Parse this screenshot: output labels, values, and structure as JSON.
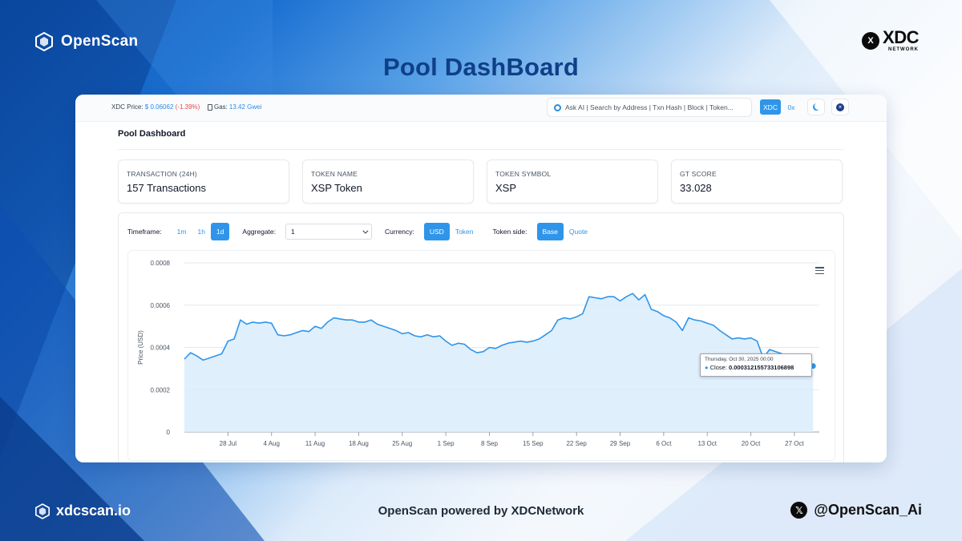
{
  "brand": {
    "name": "OpenScan",
    "partner_badge": "X",
    "partner_logo_text": "XDC",
    "partner_logo_sub": "NETWORK"
  },
  "headline": "Pool DashBoard",
  "topbar": {
    "price_label": "XDC Price:",
    "price_value": "$ 0.06062",
    "price_change": "(-1.39%)",
    "gas_label": "Gas:",
    "gas_value": "13.42 Gwei",
    "search_placeholder": "Ask AI | Search by Address | Txn Hash | Block | Token...",
    "network_xdc": "XDC",
    "network_0x": "0x"
  },
  "page": {
    "title": "Pool Dashboard",
    "cards": [
      {
        "label": "TRANSACTION (24H)",
        "value": "157 Transactions"
      },
      {
        "label": "TOKEN NAME",
        "value": "XSP Token"
      },
      {
        "label": "TOKEN SYMBOL",
        "value": "XSP"
      },
      {
        "label": "GT SCORE",
        "value": "33.028"
      }
    ]
  },
  "controls": {
    "timeframe_label": "Timeframe:",
    "timeframes": [
      "1m",
      "1h",
      "1d"
    ],
    "timeframe_active": "1d",
    "aggregate_label": "Aggregate:",
    "aggregate_value": "1",
    "currency_label": "Currency:",
    "currencies": [
      "USD",
      "Token"
    ],
    "currency_active": "USD",
    "token_side_label": "Token side:",
    "token_sides": [
      "Base",
      "Quote"
    ],
    "token_side_active": "Base"
  },
  "tooltip": {
    "date": "Thursday, Oct 30, 2025 00:00",
    "series_label": "Close",
    "value": "0.000312155733106898"
  },
  "chart_data": {
    "type": "area",
    "ylabel": "Price (USD)",
    "ylim": [
      0,
      0.0008
    ],
    "yticks": [
      0,
      0.0002,
      0.0004,
      0.0006,
      0.0008
    ],
    "ytick_labels": [
      "0",
      "0.0002",
      "0.0004",
      "0.0006",
      "0.0008"
    ],
    "xlim": [
      "2025-07-21",
      "2025-10-31"
    ],
    "xticks": [
      "2025-07-28",
      "2025-08-04",
      "2025-08-11",
      "2025-08-18",
      "2025-08-25",
      "2025-09-01",
      "2025-09-08",
      "2025-09-15",
      "2025-09-22",
      "2025-09-29",
      "2025-10-06",
      "2025-10-13",
      "2025-10-20",
      "2025-10-27"
    ],
    "xtick_labels": [
      "28 Jul",
      "4 Aug",
      "11 Aug",
      "18 Aug",
      "25 Aug",
      "1 Sep",
      "8 Sep",
      "15 Sep",
      "22 Sep",
      "29 Sep",
      "6 Oct",
      "13 Oct",
      "20 Oct",
      "27 Oct"
    ],
    "grid": true,
    "colors": {
      "line": "#2f95ea",
      "fill": "#dbecfb"
    },
    "series": [
      {
        "name": "Close",
        "x": [
          "2025-07-21",
          "2025-07-22",
          "2025-07-23",
          "2025-07-24",
          "2025-07-25",
          "2025-07-26",
          "2025-07-27",
          "2025-07-28",
          "2025-07-29",
          "2025-07-30",
          "2025-07-31",
          "2025-08-01",
          "2025-08-02",
          "2025-08-03",
          "2025-08-04",
          "2025-08-05",
          "2025-08-06",
          "2025-08-07",
          "2025-08-08",
          "2025-08-09",
          "2025-08-10",
          "2025-08-11",
          "2025-08-12",
          "2025-08-13",
          "2025-08-14",
          "2025-08-15",
          "2025-08-16",
          "2025-08-17",
          "2025-08-18",
          "2025-08-19",
          "2025-08-20",
          "2025-08-21",
          "2025-08-22",
          "2025-08-23",
          "2025-08-24",
          "2025-08-25",
          "2025-08-26",
          "2025-08-27",
          "2025-08-28",
          "2025-08-29",
          "2025-08-30",
          "2025-08-31",
          "2025-09-01",
          "2025-09-02",
          "2025-09-03",
          "2025-09-04",
          "2025-09-05",
          "2025-09-06",
          "2025-09-07",
          "2025-09-08",
          "2025-09-09",
          "2025-09-10",
          "2025-09-11",
          "2025-09-12",
          "2025-09-13",
          "2025-09-14",
          "2025-09-15",
          "2025-09-16",
          "2025-09-17",
          "2025-09-18",
          "2025-09-19",
          "2025-09-20",
          "2025-09-21",
          "2025-09-22",
          "2025-09-23",
          "2025-09-24",
          "2025-09-25",
          "2025-09-26",
          "2025-09-27",
          "2025-09-28",
          "2025-09-29",
          "2025-09-30",
          "2025-10-01",
          "2025-10-02",
          "2025-10-03",
          "2025-10-04",
          "2025-10-05",
          "2025-10-06",
          "2025-10-07",
          "2025-10-08",
          "2025-10-09",
          "2025-10-10",
          "2025-10-11",
          "2025-10-12",
          "2025-10-13",
          "2025-10-14",
          "2025-10-15",
          "2025-10-16",
          "2025-10-17",
          "2025-10-18",
          "2025-10-19",
          "2025-10-20",
          "2025-10-21",
          "2025-10-22",
          "2025-10-23",
          "2025-10-24",
          "2025-10-25",
          "2025-10-26",
          "2025-10-27",
          "2025-10-28",
          "2025-10-29",
          "2025-10-30"
        ],
        "values": [
          0.000345,
          0.000375,
          0.00036,
          0.00034,
          0.00035,
          0.00036,
          0.00037,
          0.00043,
          0.00044,
          0.00053,
          0.00051,
          0.00052,
          0.000515,
          0.00052,
          0.000515,
          0.00046,
          0.000455,
          0.00046,
          0.00047,
          0.00048,
          0.000475,
          0.0005,
          0.00049,
          0.00052,
          0.00054,
          0.000535,
          0.00053,
          0.00053,
          0.00052,
          0.00052,
          0.00053,
          0.00051,
          0.0005,
          0.00049,
          0.00048,
          0.000465,
          0.00047,
          0.000455,
          0.00045,
          0.00046,
          0.00045,
          0.000455,
          0.00043,
          0.00041,
          0.00042,
          0.000415,
          0.00039,
          0.000375,
          0.00038,
          0.0004,
          0.000395,
          0.00041,
          0.00042,
          0.000425,
          0.00043,
          0.000425,
          0.00043,
          0.00044,
          0.00046,
          0.00048,
          0.00053,
          0.00054,
          0.000535,
          0.000545,
          0.00056,
          0.00064,
          0.000635,
          0.00063,
          0.00064,
          0.00064,
          0.00062,
          0.00064,
          0.000655,
          0.000625,
          0.00065,
          0.00058,
          0.00057,
          0.00055,
          0.00054,
          0.00052,
          0.00048,
          0.00054,
          0.00053,
          0.000525,
          0.000515,
          0.000505,
          0.00048,
          0.00046,
          0.00044,
          0.000445,
          0.00044,
          0.000445,
          0.00043,
          0.00035,
          0.00039,
          0.00038,
          0.00037,
          0.00034,
          0.00032,
          0.000325,
          0.00031,
          0.000312
        ]
      }
    ]
  }
}
